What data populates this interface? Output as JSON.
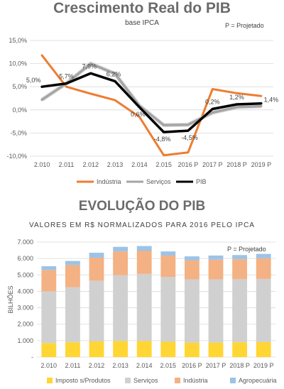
{
  "chart_data": [
    {
      "type": "line",
      "title": "Crescimento Real do PIB",
      "subtitle": "base IPCA",
      "note": "P = Projetado",
      "categories": [
        "2.010",
        "2.011",
        "2.012",
        "2.013",
        "2.014",
        "2.015",
        "2016 P",
        "2017 P",
        "2018 P",
        "2019 P"
      ],
      "yticks": [
        "15,0%",
        "10,0%",
        "5,0%",
        "0,0%",
        "-5,0%",
        "-10,0%"
      ],
      "ylim": [
        -10,
        15
      ],
      "grid": true,
      "legend": "bottom",
      "series": [
        {
          "name": "Indústria",
          "color": "#ed7d31",
          "values": [
            11.8,
            5.0,
            3.5,
            2.1,
            -1.5,
            -9.8,
            -9.2,
            4.5,
            3.6,
            3.0
          ]
        },
        {
          "name": "Serviços",
          "color": "#a5a5a5",
          "values": [
            2.2,
            5.7,
            10.0,
            7.8,
            0.9,
            -3.3,
            -3.2,
            -0.6,
            0.6,
            0.8
          ]
        },
        {
          "name": "PIB",
          "color": "#000000",
          "values": [
            5.0,
            5.7,
            7.9,
            6.2,
            0.6,
            -4.8,
            -4.5,
            0.2,
            1.2,
            1.4
          ]
        }
      ],
      "data_labels": [
        "5,0%",
        "5,7%",
        "7,9%",
        "6,2%",
        "0,6%",
        "-4,8%",
        "-4,5%",
        "0,2%",
        "1,2%",
        "1,4%"
      ]
    },
    {
      "type": "bar",
      "stacked": true,
      "title": "EVOLUÇÃO DO PIB",
      "subtitle": "VALORES  EM R$ NORMALIZADOS PARA 2016 PELO IPCA",
      "note": "P = Projetado",
      "ylabel": "BILHÕES",
      "categories": [
        "2.010",
        "2.011",
        "2.012",
        "2.013",
        "2.014",
        "2.015",
        "2016 P",
        "2017 P",
        "2018 P",
        "2019 P"
      ],
      "yticks": [
        "7.000",
        "6.000",
        "5.000",
        "4.000",
        "3.000",
        "2.000",
        "1.000",
        "-"
      ],
      "ylim": [
        0,
        7000
      ],
      "grid": true,
      "legend": "bottom",
      "series": [
        {
          "name": "Imposto s/Produtos",
          "color": "#ffd633",
          "values": [
            850,
            900,
            950,
            980,
            980,
            930,
            880,
            880,
            900,
            910
          ]
        },
        {
          "name": "Serviços",
          "color": "#d0d0d0",
          "values": [
            3150,
            3350,
            3700,
            4000,
            4080,
            3950,
            3850,
            3850,
            3850,
            3850
          ]
        },
        {
          "name": "Indústria",
          "color": "#f4b183",
          "values": [
            1300,
            1350,
            1400,
            1450,
            1400,
            1300,
            1150,
            1200,
            1200,
            1250
          ]
        },
        {
          "name": "Agropecuária",
          "color": "#9dc3e6",
          "values": [
            230,
            250,
            300,
            280,
            300,
            250,
            250,
            250,
            260,
            270
          ]
        }
      ]
    }
  ]
}
